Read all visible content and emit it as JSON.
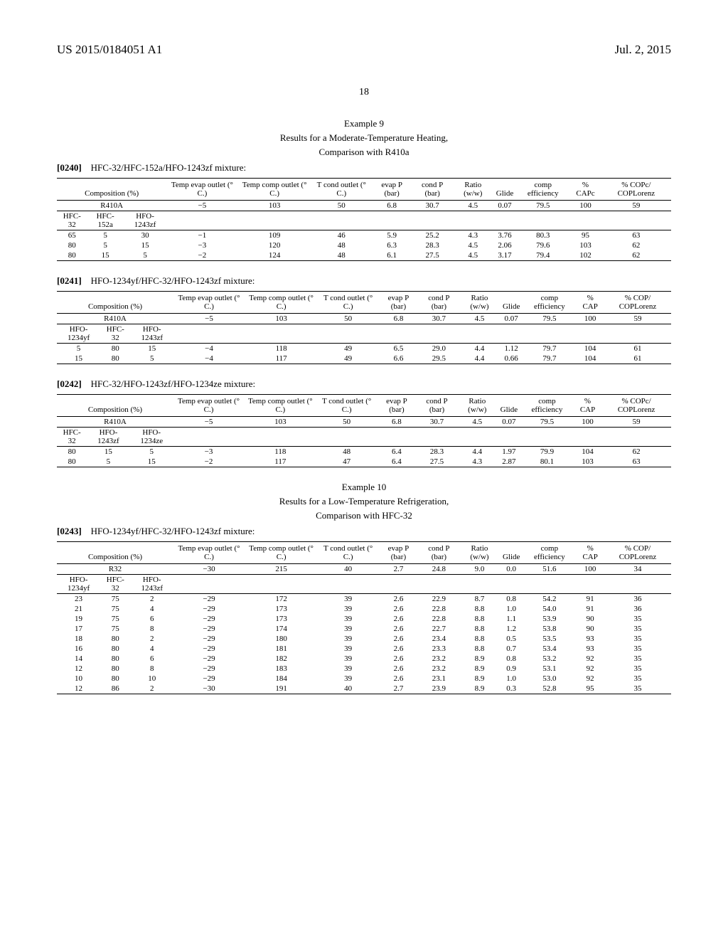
{
  "header": {
    "docnum": "US 2015/0184051 A1",
    "date": "Jul. 2, 2015",
    "pagenum": "18"
  },
  "example9": {
    "title": "Example 9",
    "subtitle1": "Results for a Moderate-Temperature Heating,",
    "subtitle2": "Comparison with R410a"
  },
  "mix1_para": "[0240]",
  "mix1_text": "HFC-32/HFC-152a/HFO-1243zf mixture:",
  "tbl_cols": {
    "comp": "Composition (%)",
    "tevap": "Temp evap outlet (° C.)",
    "tcomp": "Temp comp outlet (° C.)",
    "tcond": "T cond outlet (° C.)",
    "evapP": "evap P (bar)",
    "condP": "cond P (bar)",
    "ratio": "Ratio (w/w)",
    "glide": "Glide",
    "ceff": "comp efficiency",
    "cap": "% CAPc",
    "cap2": "% CAP",
    "copc": "% COPc/ COPLorenz",
    "cop": "% COP/ COPLorenz"
  },
  "ref410A": {
    "name": "R410A",
    "tevap": "−5",
    "tcomp": "103",
    "tcond": "50",
    "evapP": "6.8",
    "condP": "30.7",
    "ratio": "4.5",
    "glide": "0.07",
    "ceff": "79.5",
    "cap": "100",
    "cop": "59"
  },
  "ref32": {
    "name": "R32",
    "tevap": "−30",
    "tcomp": "215",
    "tcond": "40",
    "evapP": "2.7",
    "condP": "24.8",
    "ratio": "9.0",
    "glide": "0.0",
    "ceff": "51.6",
    "cap": "100",
    "cop": "34"
  },
  "t1_sub": {
    "a": "HFC-32",
    "b": "HFC-152a",
    "c": "HFO-1243zf"
  },
  "t1_rows": [
    {
      "a": "65",
      "b": "5",
      "c": "30",
      "tevap": "−1",
      "tcomp": "109",
      "tcond": "46",
      "evapP": "5.9",
      "condP": "25.2",
      "ratio": "4.3",
      "glide": "3.76",
      "ceff": "80.3",
      "cap": "95",
      "cop": "63"
    },
    {
      "a": "80",
      "b": "5",
      "c": "15",
      "tevap": "−3",
      "tcomp": "120",
      "tcond": "48",
      "evapP": "6.3",
      "condP": "28.3",
      "ratio": "4.5",
      "glide": "2.06",
      "ceff": "79.6",
      "cap": "103",
      "cop": "62"
    },
    {
      "a": "80",
      "b": "15",
      "c": "5",
      "tevap": "−2",
      "tcomp": "124",
      "tcond": "48",
      "evapP": "6.1",
      "condP": "27.5",
      "ratio": "4.5",
      "glide": "3.17",
      "ceff": "79.4",
      "cap": "102",
      "cop": "62"
    }
  ],
  "mix2_para": "[0241]",
  "mix2_text": "HFO-1234yf/HFC-32/HFO-1243zf mixture:",
  "t2_sub": {
    "a": "HFO-1234yf",
    "b": "HFC-32",
    "c": "HFO-1243zf"
  },
  "t2_rows": [
    {
      "a": "5",
      "b": "80",
      "c": "15",
      "tevap": "−4",
      "tcomp": "118",
      "tcond": "49",
      "evapP": "6.5",
      "condP": "29.0",
      "ratio": "4.4",
      "glide": "1.12",
      "ceff": "79.7",
      "cap": "104",
      "cop": "61"
    },
    {
      "a": "15",
      "b": "80",
      "c": "5",
      "tevap": "−4",
      "tcomp": "117",
      "tcond": "49",
      "evapP": "6.6",
      "condP": "29.5",
      "ratio": "4.4",
      "glide": "0.66",
      "ceff": "79.7",
      "cap": "104",
      "cop": "61"
    }
  ],
  "mix3_para": "[0242]",
  "mix3_text": "HFC-32/HFO-1243zf/HFO-1234ze mixture:",
  "t3_sub": {
    "a": "HFC-32",
    "b": "HFO-1243zf",
    "c": "HFO-1234ze"
  },
  "t3_rows": [
    {
      "a": "80",
      "b": "15",
      "c": "5",
      "tevap": "−3",
      "tcomp": "118",
      "tcond": "48",
      "evapP": "6.4",
      "condP": "28.3",
      "ratio": "4.4",
      "glide": "1.97",
      "ceff": "79.9",
      "cap": "104",
      "cop": "62"
    },
    {
      "a": "80",
      "b": "5",
      "c": "15",
      "tevap": "−2",
      "tcomp": "117",
      "tcond": "47",
      "evapP": "6.4",
      "condP": "27.5",
      "ratio": "4.3",
      "glide": "2.87",
      "ceff": "80.1",
      "cap": "103",
      "cop": "63"
    }
  ],
  "example10": {
    "title": "Example 10",
    "subtitle1": "Results for a Low-Temperature Refrigeration,",
    "subtitle2": "Comparison with HFC-32"
  },
  "mix4_para": "[0243]",
  "mix4_text": "HFO-1234yf/HFC-32/HFO-1243zf mixture:",
  "t4_sub": {
    "a": "HFO-1234yf",
    "b": "HFC-32",
    "c": "HFO-1243zf"
  },
  "t4_rows": [
    {
      "a": "23",
      "b": "75",
      "c": "2",
      "tevap": "−29",
      "tcomp": "172",
      "tcond": "39",
      "evapP": "2.6",
      "condP": "22.9",
      "ratio": "8.7",
      "glide": "0.8",
      "ceff": "54.2",
      "cap": "91",
      "cop": "36"
    },
    {
      "a": "21",
      "b": "75",
      "c": "4",
      "tevap": "−29",
      "tcomp": "173",
      "tcond": "39",
      "evapP": "2.6",
      "condP": "22.8",
      "ratio": "8.8",
      "glide": "1.0",
      "ceff": "54.0",
      "cap": "91",
      "cop": "36"
    },
    {
      "a": "19",
      "b": "75",
      "c": "6",
      "tevap": "−29",
      "tcomp": "173",
      "tcond": "39",
      "evapP": "2.6",
      "condP": "22.8",
      "ratio": "8.8",
      "glide": "1.1",
      "ceff": "53.9",
      "cap": "90",
      "cop": "35"
    },
    {
      "a": "17",
      "b": "75",
      "c": "8",
      "tevap": "−29",
      "tcomp": "174",
      "tcond": "39",
      "evapP": "2.6",
      "condP": "22.7",
      "ratio": "8.8",
      "glide": "1.2",
      "ceff": "53.8",
      "cap": "90",
      "cop": "35"
    },
    {
      "a": "18",
      "b": "80",
      "c": "2",
      "tevap": "−29",
      "tcomp": "180",
      "tcond": "39",
      "evapP": "2.6",
      "condP": "23.4",
      "ratio": "8.8",
      "glide": "0.5",
      "ceff": "53.5",
      "cap": "93",
      "cop": "35"
    },
    {
      "a": "16",
      "b": "80",
      "c": "4",
      "tevap": "−29",
      "tcomp": "181",
      "tcond": "39",
      "evapP": "2.6",
      "condP": "23.3",
      "ratio": "8.8",
      "glide": "0.7",
      "ceff": "53.4",
      "cap": "93",
      "cop": "35"
    },
    {
      "a": "14",
      "b": "80",
      "c": "6",
      "tevap": "−29",
      "tcomp": "182",
      "tcond": "39",
      "evapP": "2.6",
      "condP": "23.2",
      "ratio": "8.9",
      "glide": "0.8",
      "ceff": "53.2",
      "cap": "92",
      "cop": "35"
    },
    {
      "a": "12",
      "b": "80",
      "c": "8",
      "tevap": "−29",
      "tcomp": "183",
      "tcond": "39",
      "evapP": "2.6",
      "condP": "23.2",
      "ratio": "8.9",
      "glide": "0.9",
      "ceff": "53.1",
      "cap": "92",
      "cop": "35"
    },
    {
      "a": "10",
      "b": "80",
      "c": "10",
      "tevap": "−29",
      "tcomp": "184",
      "tcond": "39",
      "evapP": "2.6",
      "condP": "23.1",
      "ratio": "8.9",
      "glide": "1.0",
      "ceff": "53.0",
      "cap": "92",
      "cop": "35"
    },
    {
      "a": "12",
      "b": "86",
      "c": "2",
      "tevap": "−30",
      "tcomp": "191",
      "tcond": "40",
      "evapP": "2.7",
      "condP": "23.9",
      "ratio": "8.9",
      "glide": "0.3",
      "ceff": "52.8",
      "cap": "95",
      "cop": "35"
    }
  ]
}
